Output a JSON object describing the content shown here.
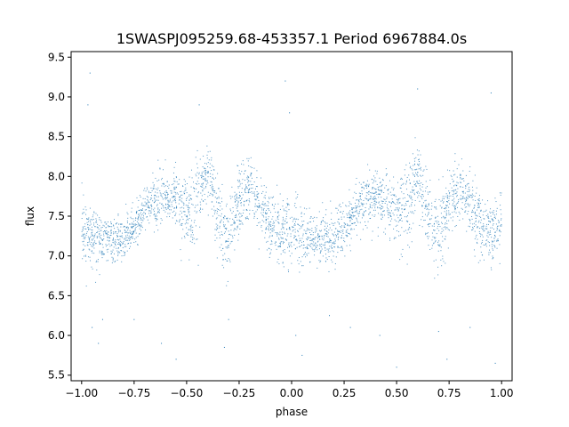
{
  "chart_data": {
    "type": "scatter",
    "title": "1SWASPJ095259.68-453357.1 Period 6967884.0s",
    "xlabel": "phase",
    "ylabel": "flux",
    "xlim": [
      -1.05,
      1.05
    ],
    "ylim": [
      5.43,
      9.57
    ],
    "x_ticks": [
      -1.0,
      -0.75,
      -0.5,
      -0.25,
      0.0,
      0.25,
      0.5,
      0.75,
      1.0
    ],
    "x_tick_labels": [
      "−1.00",
      "−0.75",
      "−0.50",
      "−0.25",
      "0.00",
      "0.25",
      "0.50",
      "0.75",
      "1.00"
    ],
    "y_ticks": [
      5.5,
      6.0,
      6.5,
      7.0,
      7.5,
      8.0,
      8.5,
      9.0,
      9.5
    ],
    "y_tick_labels": [
      "5.5",
      "6.0",
      "6.5",
      "7.0",
      "7.5",
      "8.0",
      "8.5",
      "9.0",
      "9.5"
    ],
    "grid": false,
    "marker_color": "#1f77b4",
    "series": [
      {
        "x": [
          -1.0,
          -0.95,
          -0.9,
          -0.85,
          -0.8,
          -0.75,
          -0.7,
          -0.65,
          -0.6,
          -0.55,
          -0.5,
          -0.45,
          -0.4,
          -0.35,
          -0.3,
          -0.25,
          -0.2,
          -0.15,
          -0.1,
          -0.05,
          0.0,
          0.05,
          0.1,
          0.15,
          0.2,
          0.25,
          0.3,
          0.35,
          0.4,
          0.45,
          0.5,
          0.55,
          0.6,
          0.65,
          0.7,
          0.75,
          0.8,
          0.85,
          0.9,
          0.95,
          1.0
        ],
        "y": [
          7.35,
          7.25,
          7.2,
          7.2,
          7.2,
          7.35,
          7.6,
          7.7,
          7.75,
          7.7,
          7.5,
          7.6,
          8.05,
          7.5,
          7.2,
          7.7,
          7.85,
          7.6,
          7.4,
          7.3,
          7.35,
          7.25,
          7.2,
          7.2,
          7.2,
          7.35,
          7.6,
          7.7,
          7.75,
          7.7,
          7.5,
          7.6,
          8.05,
          7.5,
          7.2,
          7.7,
          7.85,
          7.6,
          7.4,
          7.3,
          7.35
        ],
        "spread": [
          0.35,
          0.3,
          0.25,
          0.25,
          0.22,
          0.25,
          0.25,
          0.25,
          0.28,
          0.3,
          0.35,
          0.5,
          0.35,
          0.4,
          0.45,
          0.35,
          0.3,
          0.3,
          0.35,
          0.35,
          0.35,
          0.3,
          0.25,
          0.25,
          0.22,
          0.25,
          0.25,
          0.25,
          0.28,
          0.3,
          0.35,
          0.5,
          0.35,
          0.4,
          0.45,
          0.35,
          0.3,
          0.3,
          0.35,
          0.35,
          0.35
        ]
      }
    ],
    "outliers": [
      [
        -0.96,
        9.3
      ],
      [
        -0.97,
        8.9
      ],
      [
        -0.95,
        6.1
      ],
      [
        -0.92,
        5.9
      ],
      [
        -0.9,
        6.2
      ],
      [
        -0.55,
        5.7
      ],
      [
        -0.44,
        8.9
      ],
      [
        -0.32,
        5.85
      ],
      [
        -0.3,
        6.2
      ],
      [
        -0.03,
        9.2
      ],
      [
        -0.01,
        8.8
      ],
      [
        0.02,
        6.0
      ],
      [
        0.05,
        5.75
      ],
      [
        0.28,
        6.1
      ],
      [
        0.42,
        6.0
      ],
      [
        0.5,
        5.6
      ],
      [
        0.6,
        9.1
      ],
      [
        0.7,
        6.05
      ],
      [
        0.74,
        5.7
      ],
      [
        0.95,
        9.05
      ],
      [
        0.97,
        5.65
      ],
      [
        -0.75,
        6.2
      ],
      [
        0.18,
        6.25
      ],
      [
        -0.62,
        5.9
      ],
      [
        0.85,
        6.1
      ]
    ]
  }
}
